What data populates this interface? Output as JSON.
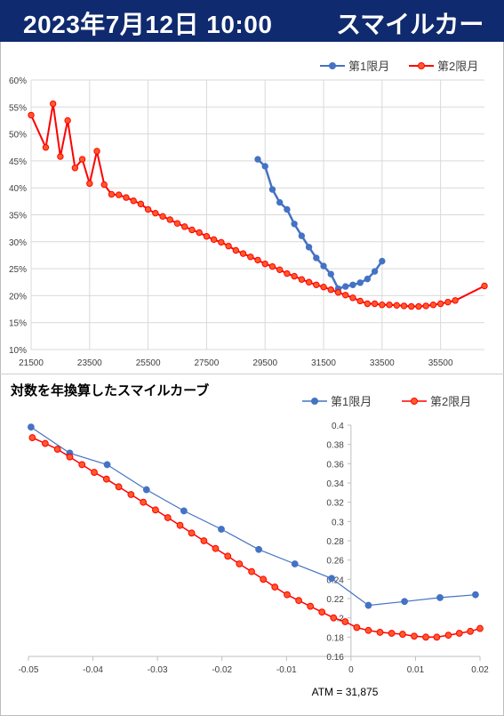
{
  "header": {
    "date": "2023年7月12日 10:00",
    "title": "スマイルカーブ"
  },
  "colors": {
    "banner": "#0f2a6e",
    "series1": "#4472c4",
    "series2": "#ff0000",
    "marker2_fill": "#ff5a2a"
  },
  "chart_data": [
    {
      "type": "line",
      "title": "",
      "xlabel": "",
      "ylabel": "",
      "xlim": [
        21500,
        37000
      ],
      "ylim": [
        0.1,
        0.6
      ],
      "x_ticks": [
        21500,
        23500,
        25500,
        27500,
        29500,
        31500,
        33500,
        35500
      ],
      "y_ticks": [
        0.1,
        0.15,
        0.2,
        0.25,
        0.3,
        0.35,
        0.4,
        0.45,
        0.5,
        0.55,
        0.6
      ],
      "y_format": "percent",
      "grid": true,
      "legend": "top-right",
      "series": [
        {
          "name": "第1限月",
          "x": [
            29250,
            29500,
            29750,
            30000,
            30250,
            30500,
            30750,
            31000,
            31250,
            31500,
            31750,
            32000,
            32250,
            32500,
            32750,
            33000,
            33250,
            33500
          ],
          "y": [
            0.453,
            0.44,
            0.397,
            0.373,
            0.36,
            0.333,
            0.311,
            0.29,
            0.27,
            0.255,
            0.24,
            0.213,
            0.217,
            0.22,
            0.224,
            0.231,
            0.245,
            0.264
          ]
        },
        {
          "name": "第2限月",
          "x": [
            21500,
            22000,
            22250,
            22500,
            22750,
            23000,
            23250,
            23500,
            23750,
            24000,
            24250,
            24500,
            24750,
            25000,
            25250,
            25500,
            25750,
            26000,
            26250,
            26500,
            26750,
            27000,
            27250,
            27500,
            27750,
            28000,
            28250,
            28500,
            28750,
            29000,
            29250,
            29500,
            29750,
            30000,
            30250,
            30500,
            30750,
            31000,
            31250,
            31500,
            31750,
            32000,
            32250,
            32500,
            32750,
            33000,
            33250,
            33500,
            33750,
            34000,
            34250,
            34500,
            34750,
            35000,
            35250,
            35500,
            35750,
            36000,
            37000
          ],
          "y": [
            0.535,
            0.475,
            0.556,
            0.458,
            0.525,
            0.437,
            0.453,
            0.408,
            0.468,
            0.406,
            0.388,
            0.387,
            0.382,
            0.376,
            0.37,
            0.36,
            0.353,
            0.347,
            0.341,
            0.334,
            0.328,
            0.322,
            0.317,
            0.31,
            0.304,
            0.299,
            0.292,
            0.284,
            0.278,
            0.272,
            0.266,
            0.259,
            0.254,
            0.248,
            0.241,
            0.236,
            0.23,
            0.225,
            0.22,
            0.216,
            0.211,
            0.206,
            0.201,
            0.196,
            0.19,
            0.185,
            0.185,
            0.183,
            0.183,
            0.182,
            0.181,
            0.18,
            0.18,
            0.181,
            0.183,
            0.185,
            0.188,
            0.191,
            0.218
          ]
        }
      ]
    },
    {
      "type": "line",
      "title": "対数を年換算したスマイルカーブ",
      "xlabel": "",
      "ylabel": "",
      "xlim": [
        -0.05,
        0.02
      ],
      "ylim": [
        0.16,
        0.4
      ],
      "x_ticks": [
        -0.05,
        -0.04,
        -0.03,
        -0.02,
        -0.01,
        0,
        0.01,
        0.02
      ],
      "y_ticks": [
        0.16,
        0.18,
        0.2,
        0.22,
        0.24,
        0.26,
        0.28,
        0.3,
        0.32,
        0.34,
        0.36,
        0.38,
        0.4
      ],
      "grid": false,
      "legend": "top-right",
      "annotation": "ATM = 31,875",
      "series": [
        {
          "name": "第1限月",
          "x": [
            -0.0496,
            -0.0436,
            -0.0378,
            -0.0317,
            -0.0259,
            -0.0201,
            -0.0143,
            -0.0087,
            -0.003,
            0.0027,
            0.0083,
            0.0138,
            0.0193
          ],
          "y": [
            0.398,
            0.371,
            0.359,
            0.333,
            0.311,
            0.292,
            0.271,
            0.256,
            0.241,
            0.213,
            0.217,
            0.221,
            0.224
          ]
        },
        {
          "name": "第2限月",
          "x": [
            -0.0494,
            -0.0474,
            -0.0455,
            -0.0436,
            -0.0417,
            -0.0398,
            -0.0379,
            -0.036,
            -0.0341,
            -0.0322,
            -0.0303,
            -0.0284,
            -0.0265,
            -0.0247,
            -0.0228,
            -0.021,
            -0.0191,
            -0.0173,
            -0.0154,
            -0.0136,
            -0.0118,
            -0.0099,
            -0.0081,
            -0.0063,
            -0.0045,
            -0.0027,
            -0.0009,
            0.0009,
            0.0027,
            0.0045,
            0.0063,
            0.008,
            0.0098,
            0.0116,
            0.0133,
            0.0151,
            0.0168,
            0.0185,
            0.02
          ],
          "y": [
            0.387,
            0.381,
            0.375,
            0.367,
            0.359,
            0.351,
            0.344,
            0.336,
            0.328,
            0.32,
            0.312,
            0.304,
            0.296,
            0.288,
            0.28,
            0.272,
            0.264,
            0.256,
            0.248,
            0.24,
            0.232,
            0.224,
            0.218,
            0.212,
            0.206,
            0.2,
            0.196,
            0.19,
            0.187,
            0.185,
            0.184,
            0.183,
            0.181,
            0.18,
            0.18,
            0.182,
            0.184,
            0.186,
            0.189
          ]
        }
      ]
    }
  ]
}
